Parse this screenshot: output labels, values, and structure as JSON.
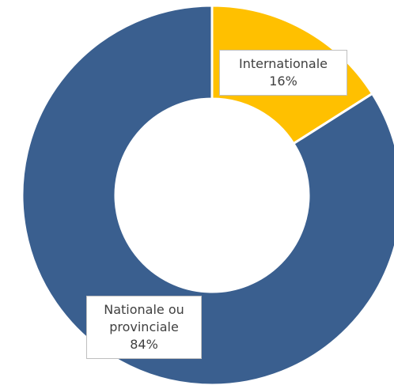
{
  "chart_data": {
    "type": "donut",
    "categories": [
      "Internationale",
      "Nationale ou provinciale"
    ],
    "values": [
      16,
      84
    ],
    "value_labels": [
      "16%",
      "84%"
    ],
    "colors": [
      "#ffc000",
      "#3a5f8f"
    ]
  }
}
